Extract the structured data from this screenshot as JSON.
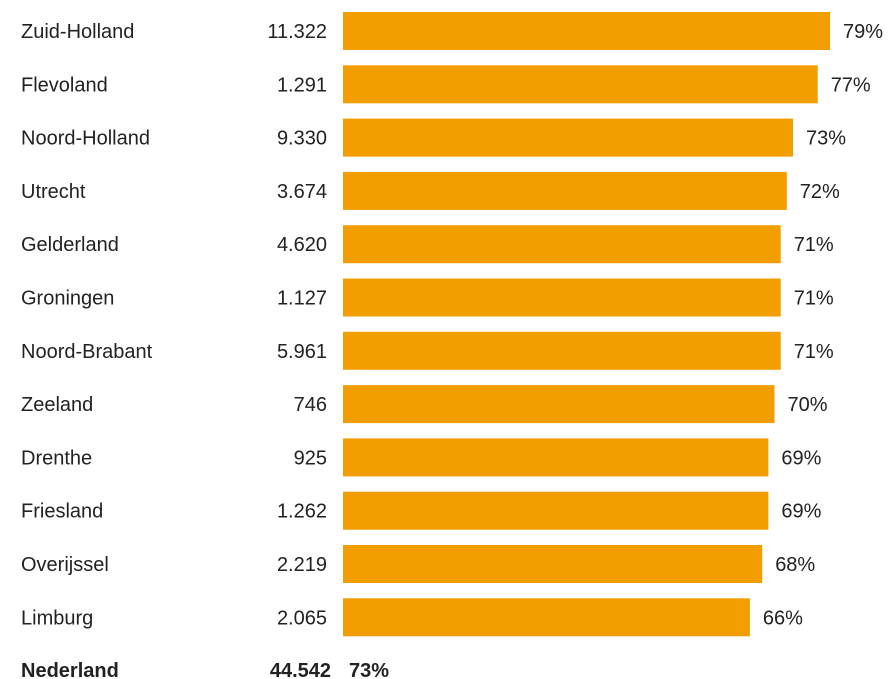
{
  "chart_data": {
    "type": "bar",
    "orientation": "horizontal",
    "bar_color": "#f29e00",
    "text_color": "#222222",
    "categories": [
      "Zuid-Holland",
      "Flevoland",
      "Noord-Holland",
      "Utrecht",
      "Gelderland",
      "Groningen",
      "Noord-Brabant",
      "Zeeland",
      "Drenthe",
      "Friesland",
      "Overijssel",
      "Limburg"
    ],
    "counts": [
      "11.322",
      "1.291",
      "9.330",
      "3.674",
      "4.620",
      "1.127",
      "5.961",
      "746",
      "925",
      "1.262",
      "2.219",
      "2.065"
    ],
    "values": [
      79,
      77,
      73,
      72,
      71,
      71,
      71,
      70,
      69,
      69,
      68,
      66
    ],
    "value_labels": [
      "79%",
      "77%",
      "73%",
      "72%",
      "71%",
      "71%",
      "71%",
      "70%",
      "69%",
      "69%",
      "68%",
      "66%"
    ],
    "total": {
      "label": "Nederland",
      "count": "44.542",
      "value": 73,
      "value_label": "73%"
    }
  }
}
